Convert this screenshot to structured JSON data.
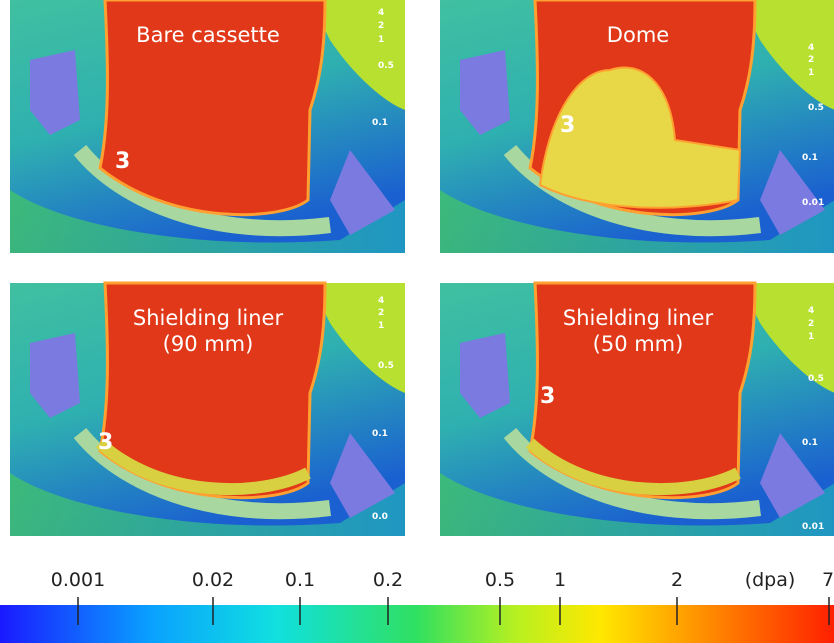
{
  "panels": [
    {
      "title_lines": [
        "Bare cassette"
      ],
      "marker": "3",
      "contour_labels": [
        "4",
        "2",
        "1",
        "0.5",
        "0.1"
      ]
    },
    {
      "title_lines": [
        "Dome"
      ],
      "marker": "3",
      "contour_labels": [
        "4",
        "2",
        "1",
        "0.5",
        "0.1",
        "0.01"
      ]
    },
    {
      "title_lines": [
        "Shielding liner",
        "(90 mm)"
      ],
      "marker": "3",
      "contour_labels": [
        "4",
        "2",
        "1",
        "0.5",
        "0.1",
        "0.0"
      ]
    },
    {
      "title_lines": [
        "Shielding liner",
        "(50 mm)"
      ],
      "marker": "3",
      "contour_labels": [
        "4",
        "2",
        "1",
        "0.5",
        "0.1",
        "0.01"
      ]
    }
  ],
  "colorbar": {
    "ticks": [
      "0.001",
      "0.02",
      "0.1",
      "0.2",
      "0.5",
      "1",
      "2"
    ],
    "unit": "(dpa)",
    "max": "7"
  }
}
